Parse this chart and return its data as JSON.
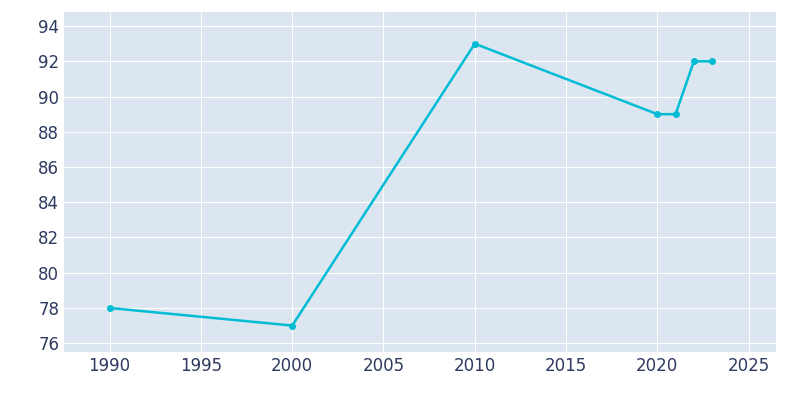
{
  "years": [
    1990,
    2000,
    2010,
    2020,
    2021,
    2022,
    2023
  ],
  "population": [
    78,
    77,
    93,
    89,
    89,
    92,
    92
  ],
  "line_color": "#00bcd4",
  "line_width": 1.8,
  "plot_bg_color": "#dce6f0",
  "fig_bg_color": "#ffffff",
  "grid_color": "#ffffff",
  "tick_color": "#2e3a5f",
  "tick_fontsize": 12,
  "ylim": [
    75.5,
    94.8
  ],
  "xlim": [
    1987.5,
    2026.5
  ],
  "yticks": [
    76,
    78,
    80,
    82,
    84,
    86,
    88,
    90,
    92,
    94
  ],
  "xticks": [
    1990,
    1995,
    2000,
    2005,
    2010,
    2015,
    2020,
    2025
  ]
}
